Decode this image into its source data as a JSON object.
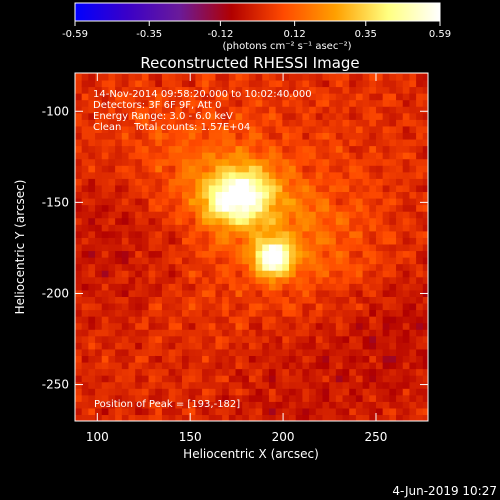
{
  "colorbar": {
    "tick_labels": [
      "-0.59",
      "-0.35",
      "-0.12",
      "0.12",
      "0.35",
      "0.59"
    ],
    "tick_values": [
      -0.59,
      -0.35,
      -0.12,
      0.12,
      0.35,
      0.59
    ],
    "range": [
      -0.59,
      0.59
    ],
    "units_label": "(photons cm⁻² s⁻¹ asec⁻²)",
    "colors": [
      "#0000ff",
      "#3a00c8",
      "#6a1a9a",
      "#b10000",
      "#ff4a00",
      "#ffa000",
      "#ffff80",
      "#ffffff"
    ]
  },
  "chart_data": {
    "type": "heatmap",
    "title": "Reconstructed RHESSI Image",
    "xlabel": "Heliocentric X (arcsec)",
    "ylabel": "Heliocentric Y (arcsec)",
    "xlim": [
      88,
      278
    ],
    "ylim": [
      -270,
      -79
    ],
    "xticks": [
      "100",
      "150",
      "200",
      "250"
    ],
    "xtick_values": [
      100,
      150,
      200,
      250
    ],
    "yticks": [
      "-100",
      "-150",
      "-200",
      "-250"
    ],
    "ytick_values": [
      -100,
      -150,
      -200,
      -250
    ],
    "annotation_lines": [
      "14-Nov-2014 09:58:20.000 to 10:02:40.000",
      "Detectors: 3F 6F 9F, Att 0",
      "Energy Range: 3.0 - 6.0 keV",
      "Clean    Total counts: 1.57E+04"
    ],
    "peak_label": "Position of Peak = [193,-182]",
    "peak_position": [
      193,
      -182
    ],
    "sources": [
      {
        "x": 193,
        "y": -182,
        "intensity": 0.59
      },
      {
        "x": 168,
        "y": -150,
        "intensity": 0.33
      },
      {
        "x": 180,
        "y": -146,
        "intensity": 0.3
      }
    ]
  },
  "footer_date": "4-Jun-2019 10:27"
}
